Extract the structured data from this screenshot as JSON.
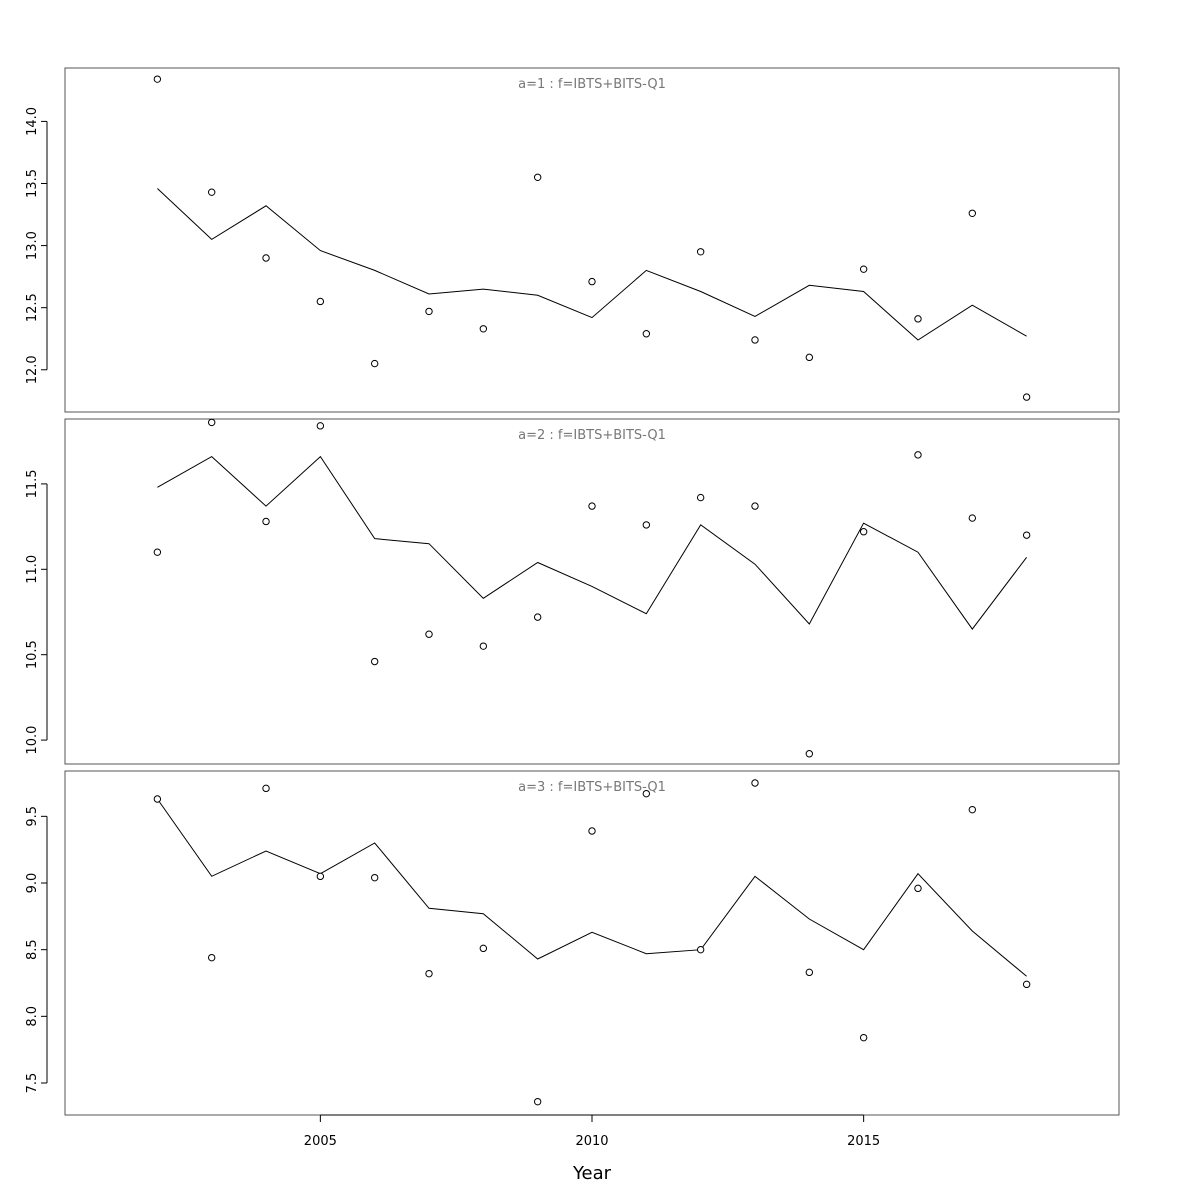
{
  "chart_data": {
    "type": "line",
    "xlabel": "Year",
    "x_tick_labels": [
      "2005",
      "2010",
      "2015"
    ],
    "x_ticks": [
      2005,
      2010,
      2015
    ],
    "xlim": [
      2000.3,
      2019.7
    ],
    "grid": false,
    "colors": {
      "line": "#000000",
      "points": "#000000",
      "panel_title": "#777777",
      "frame": "#555555"
    },
    "panels": [
      {
        "title": "a=1 : f=IBTS+BITS-Q1",
        "ylim": [
          11.66,
          14.43
        ],
        "y_ticks": [
          12.0,
          12.5,
          13.0,
          13.5,
          14.0
        ],
        "y_tick_labels": [
          "12.0",
          "12.5",
          "13.0",
          "13.5",
          "14.0"
        ],
        "x": [
          2002,
          2003,
          2004,
          2005,
          2006,
          2007,
          2008,
          2009,
          2010,
          2011,
          2012,
          2013,
          2014,
          2015,
          2016,
          2017,
          2018
        ],
        "series": [
          {
            "kind": "line",
            "values": [
              13.46,
              13.05,
              13.32,
              12.96,
              12.8,
              12.61,
              12.65,
              12.6,
              12.42,
              12.8,
              12.63,
              12.43,
              12.68,
              12.63,
              12.24,
              12.52,
              12.27
            ]
          },
          {
            "kind": "points",
            "values": [
              14.34,
              13.43,
              12.9,
              12.55,
              12.05,
              12.47,
              12.33,
              13.55,
              12.71,
              12.29,
              12.95,
              12.24,
              12.1,
              12.81,
              12.41,
              13.26,
              11.78
            ]
          }
        ]
      },
      {
        "title": "a=2 : f=IBTS+BITS-Q1",
        "ylim": [
          9.86,
          11.88
        ],
        "y_ticks": [
          10.0,
          10.5,
          11.0,
          11.5
        ],
        "y_tick_labels": [
          "10.0",
          "10.5",
          "11.0",
          "11.5"
        ],
        "x": [
          2002,
          2003,
          2004,
          2005,
          2006,
          2007,
          2008,
          2009,
          2010,
          2011,
          2012,
          2013,
          2014,
          2015,
          2016,
          2017,
          2018
        ],
        "series": [
          {
            "kind": "line",
            "values": [
              11.48,
              11.66,
              11.37,
              11.66,
              11.18,
              11.15,
              10.83,
              11.04,
              10.9,
              10.74,
              11.26,
              11.03,
              10.68,
              11.27,
              11.1,
              10.65,
              11.07
            ]
          },
          {
            "kind": "points",
            "values": [
              11.1,
              11.86,
              11.28,
              11.84,
              10.46,
              10.62,
              10.55,
              10.72,
              11.37,
              11.26,
              11.42,
              11.37,
              9.92,
              11.22,
              11.67,
              11.3,
              11.2
            ]
          }
        ]
      },
      {
        "title": "a=3 : f=IBTS+BITS-Q1",
        "ylim": [
          7.26,
          9.84
        ],
        "y_ticks": [
          7.5,
          8.0,
          8.5,
          9.0,
          9.5
        ],
        "y_tick_labels": [
          "7.5",
          "8.0",
          "8.5",
          "9.0",
          "9.5"
        ],
        "x": [
          2002,
          2003,
          2004,
          2005,
          2006,
          2007,
          2008,
          2009,
          2010,
          2011,
          2012,
          2013,
          2014,
          2015,
          2016,
          2017,
          2018
        ],
        "series": [
          {
            "kind": "line",
            "values": [
              9.63,
              9.05,
              9.24,
              9.07,
              9.3,
              8.81,
              8.77,
              8.43,
              8.63,
              8.47,
              8.5,
              9.05,
              8.73,
              8.5,
              9.07,
              8.64,
              8.3
            ]
          },
          {
            "kind": "points",
            "values": [
              9.63,
              8.44,
              9.71,
              9.05,
              9.04,
              8.32,
              8.51,
              7.36,
              9.39,
              9.67,
              8.5,
              9.75,
              8.33,
              7.84,
              8.96,
              9.55,
              8.24
            ]
          }
        ]
      }
    ]
  }
}
